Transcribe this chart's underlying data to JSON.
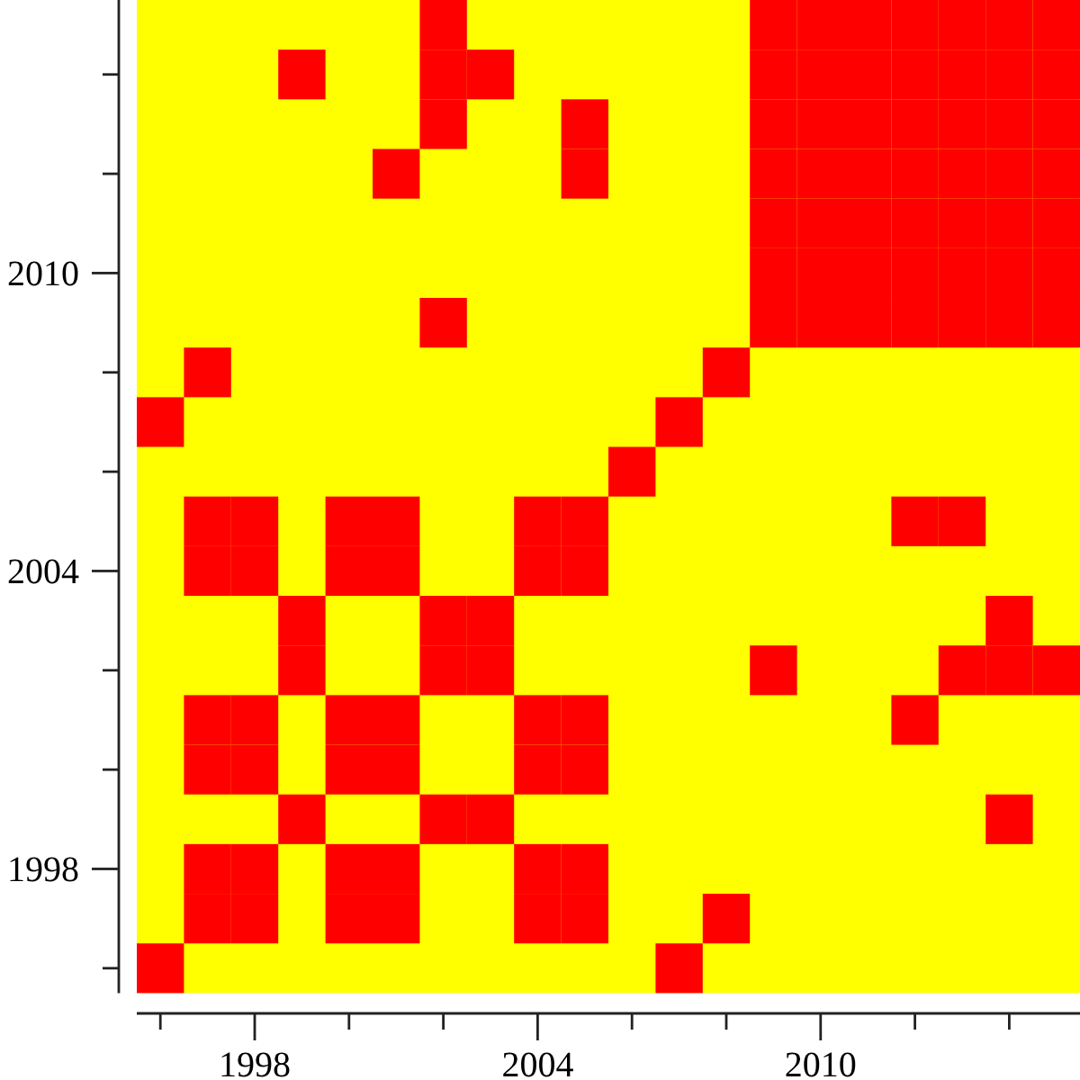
{
  "chart_data": {
    "type": "scatter",
    "marker": "square",
    "xlim": [
      1995.5,
      2015.5
    ],
    "ylim": [
      1995.5,
      2015.5
    ],
    "xticks": [
      {
        "value": 1996,
        "label": null
      },
      1998,
      {
        "value": 2000,
        "label": null
      },
      {
        "value": 2002,
        "label": null
      },
      2004,
      {
        "value": 2006,
        "label": null
      },
      {
        "value": 2008,
        "label": null
      },
      2010,
      {
        "value": 2012,
        "label": null
      },
      {
        "value": 2014,
        "label": null
      }
    ],
    "yticks": [
      {
        "value": 1996,
        "label": null
      },
      1998,
      {
        "value": 2000,
        "label": null
      },
      {
        "value": 2002,
        "label": null
      },
      2004,
      {
        "value": 2006,
        "label": null
      },
      {
        "value": 2008,
        "label": null
      },
      2010,
      {
        "value": 2012,
        "label": null
      },
      {
        "value": 2014,
        "label": null
      }
    ],
    "series": [
      {
        "color": "#ff0000",
        "x": [
          1996,
          2007,
          1997,
          1998,
          2000,
          2001,
          2004,
          2005,
          2008,
          1997,
          1998,
          2000,
          2001,
          2004,
          2005,
          1999,
          2002,
          2003,
          2014,
          1997,
          1998,
          2000,
          2001,
          2004,
          2005,
          1997,
          1998,
          2000,
          2001,
          2004,
          2005,
          2012,
          1999,
          2002,
          2003,
          2009,
          2013,
          2014,
          2015,
          1999,
          2002,
          2003,
          2014,
          1997,
          1998,
          2000,
          2001,
          2004,
          2005,
          1997,
          1998,
          2000,
          2001,
          2004,
          2005,
          2012,
          2013,
          2006,
          1996,
          2007,
          1997,
          2008,
          2002,
          2009,
          2010,
          2011,
          2012,
          2013,
          2014,
          2015,
          2009,
          2010,
          2011,
          2012,
          2013,
          2014,
          2015,
          2009,
          2010,
          2011,
          2012,
          2013,
          2014,
          2015,
          2001,
          2005,
          2009,
          2010,
          2011,
          2012,
          2013,
          2014,
          2015,
          2002,
          2005,
          2009,
          2010,
          2011,
          2012,
          2013,
          2014,
          2015,
          1999,
          2002,
          2003,
          2009,
          2010,
          2011,
          2012,
          2013,
          2014,
          2015,
          2002,
          2009,
          2010,
          2011,
          2012,
          2013,
          2014,
          2015
        ],
        "values": [
          1996,
          1996,
          1997,
          1997,
          1997,
          1997,
          1997,
          1997,
          1997,
          1998,
          1998,
          1998,
          1998,
          1998,
          1998,
          1999,
          1999,
          1999,
          1999,
          2000,
          2000,
          2000,
          2000,
          2000,
          2000,
          2001,
          2001,
          2001,
          2001,
          2001,
          2001,
          2001,
          2002,
          2002,
          2002,
          2002,
          2002,
          2002,
          2002,
          2003,
          2003,
          2003,
          2003,
          2004,
          2004,
          2004,
          2004,
          2004,
          2004,
          2005,
          2005,
          2005,
          2005,
          2005,
          2005,
          2005,
          2005,
          2006,
          2007,
          2007,
          2008,
          2008,
          2009,
          2009,
          2009,
          2009,
          2009,
          2009,
          2009,
          2009,
          2010,
          2010,
          2010,
          2010,
          2010,
          2010,
          2010,
          2011,
          2011,
          2011,
          2011,
          2011,
          2011,
          2011,
          2012,
          2012,
          2012,
          2012,
          2012,
          2012,
          2012,
          2012,
          2012,
          2013,
          2013,
          2013,
          2013,
          2013,
          2013,
          2013,
          2013,
          2013,
          2014,
          2014,
          2014,
          2014,
          2014,
          2014,
          2014,
          2014,
          2014,
          2014,
          2015,
          2015,
          2015,
          2015,
          2015,
          2015,
          2015,
          2015
        ]
      }
    ]
  }
}
